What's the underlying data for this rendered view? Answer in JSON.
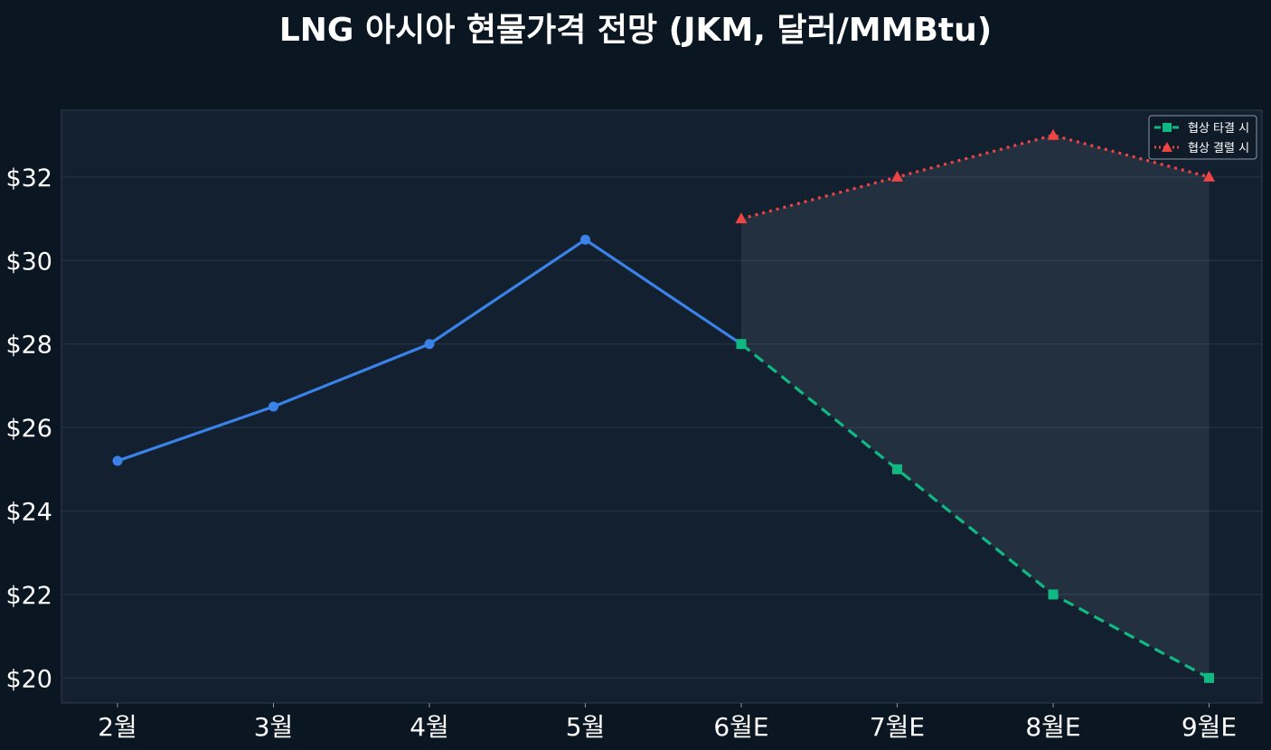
{
  "chart_data": {
    "type": "line",
    "title": "LNG 아시아 현물가격 전망 (JKM, 달러/MMBtu)",
    "xlabel": "",
    "ylabel": "",
    "categories": [
      "2월",
      "3월",
      "4월",
      "5월",
      "6월E",
      "7월E",
      "8월E",
      "9월E"
    ],
    "ylim": [
      19.4,
      33.6
    ],
    "yticks": [
      20,
      22,
      24,
      26,
      28,
      30,
      32
    ],
    "ytick_labels": [
      "$20",
      "$22",
      "$24",
      "$26",
      "$28",
      "$30",
      "$32"
    ],
    "grid": true,
    "legend_position": "top-right",
    "series": [
      {
        "key": "actual",
        "x": [
          "2월",
          "3월",
          "4월",
          "5월",
          "6월E"
        ],
        "values": [
          25.2,
          26.5,
          28.0,
          30.5,
          28.0
        ],
        "color": "#3b82e8",
        "style": "solid",
        "marker": "circle"
      },
      {
        "key": "deal",
        "name": "협상 타결 시",
        "x": [
          "6월E",
          "7월E",
          "8월E",
          "9월E"
        ],
        "values": [
          28.0,
          25.0,
          22.0,
          20.0
        ],
        "color": "#10b981",
        "style": "dashed",
        "marker": "square"
      },
      {
        "key": "nodeal",
        "name": "협상 결렬 시",
        "x": [
          "6월E",
          "7월E",
          "8월E",
          "9월E"
        ],
        "values": [
          31.0,
          32.0,
          33.0,
          32.0
        ],
        "color": "#ef4444",
        "style": "dotted",
        "marker": "triangle"
      }
    ],
    "shaded_band": {
      "between": [
        "deal",
        "nodeal"
      ],
      "color": "#9aa8b8"
    },
    "colors": {
      "background": "#0b1623",
      "plot_background": "#13202f",
      "grid": "#26364a",
      "text": "#ffffff"
    }
  }
}
